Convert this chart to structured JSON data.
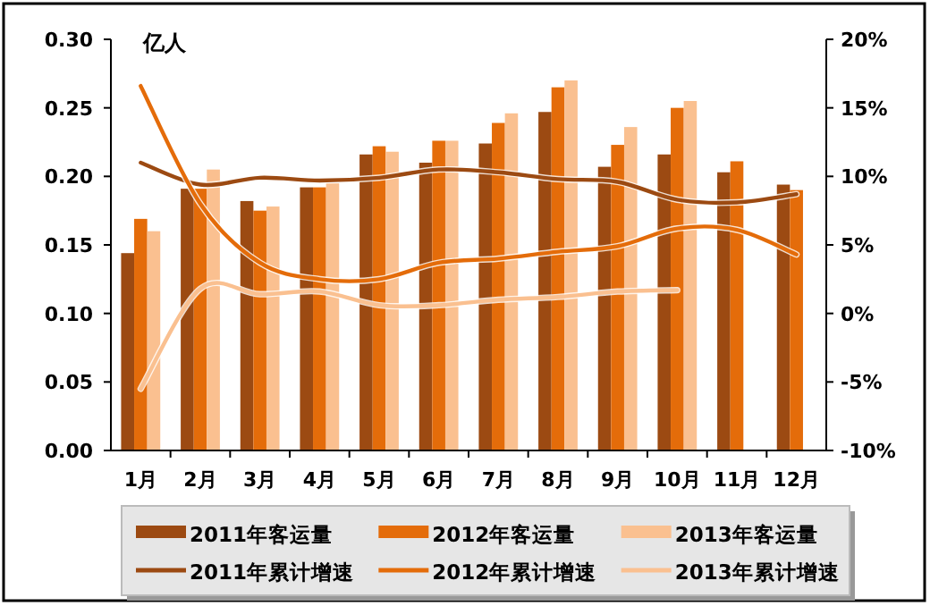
{
  "chart_data": {
    "type": "bar",
    "ylabel": "亿人",
    "categories": [
      "1月",
      "2月",
      "3月",
      "4月",
      "5月",
      "6月",
      "7月",
      "8月",
      "9月",
      "10月",
      "11月",
      "12月"
    ],
    "series": [
      {
        "name": "2011年客运量",
        "color": "#9c4a12",
        "values": [
          0.144,
          0.191,
          0.182,
          0.192,
          0.216,
          0.21,
          0.224,
          0.247,
          0.207,
          0.216,
          0.203,
          0.194
        ]
      },
      {
        "name": "2012年客运量",
        "color": "#e46c0a",
        "values": [
          0.169,
          0.191,
          0.175,
          0.192,
          0.222,
          0.226,
          0.239,
          0.265,
          0.223,
          0.25,
          0.211,
          0.19
        ]
      },
      {
        "name": "2013年客运量",
        "color": "#fac090",
        "values": [
          0.16,
          0.205,
          0.178,
          0.195,
          0.218,
          0.226,
          0.246,
          0.27,
          0.236,
          0.255,
          null,
          null
        ]
      },
      {
        "name": "2011年累计增速",
        "type": "line",
        "axis": "y2",
        "color": "#9c4a12",
        "values": [
          11.0,
          9.4,
          9.9,
          9.7,
          9.9,
          10.5,
          10.3,
          9.8,
          9.6,
          8.3,
          8.1,
          8.7
        ]
      },
      {
        "name": "2012年累计增速",
        "type": "line",
        "axis": "y2",
        "color": "#e46c0a",
        "values": [
          16.6,
          8.0,
          3.7,
          2.5,
          2.5,
          3.7,
          4.0,
          4.5,
          4.9,
          6.2,
          6.1,
          4.3
        ]
      },
      {
        "name": "2013年累计增速",
        "type": "line",
        "axis": "y2",
        "color": "#fac090",
        "values": [
          -5.5,
          1.8,
          1.4,
          1.6,
          0.6,
          0.6,
          1.0,
          1.2,
          1.6,
          1.7,
          null,
          null
        ]
      }
    ],
    "ylim": [
      0,
      0.3
    ],
    "yticks": [
      {
        "value": 0,
        "label": "0.00"
      },
      {
        "value": 0.05,
        "label": "0.05"
      },
      {
        "value": 0.1,
        "label": "0.10"
      },
      {
        "value": 0.15,
        "label": "0.15"
      },
      {
        "value": 0.2,
        "label": "0.20"
      },
      {
        "value": 0.25,
        "label": "0.25"
      },
      {
        "value": 0.3,
        "label": "0.30"
      }
    ],
    "y2lim": [
      -10,
      20
    ],
    "y2ticks": [
      {
        "value": -10,
        "label": "-10%"
      },
      {
        "value": -5,
        "label": "-5%"
      },
      {
        "value": 0,
        "label": "0%"
      },
      {
        "value": 5,
        "label": "5%"
      },
      {
        "value": 10,
        "label": "10%"
      },
      {
        "value": 15,
        "label": "15%"
      },
      {
        "value": 20,
        "label": "20%"
      }
    ],
    "grid": false,
    "legend": "bottom"
  }
}
